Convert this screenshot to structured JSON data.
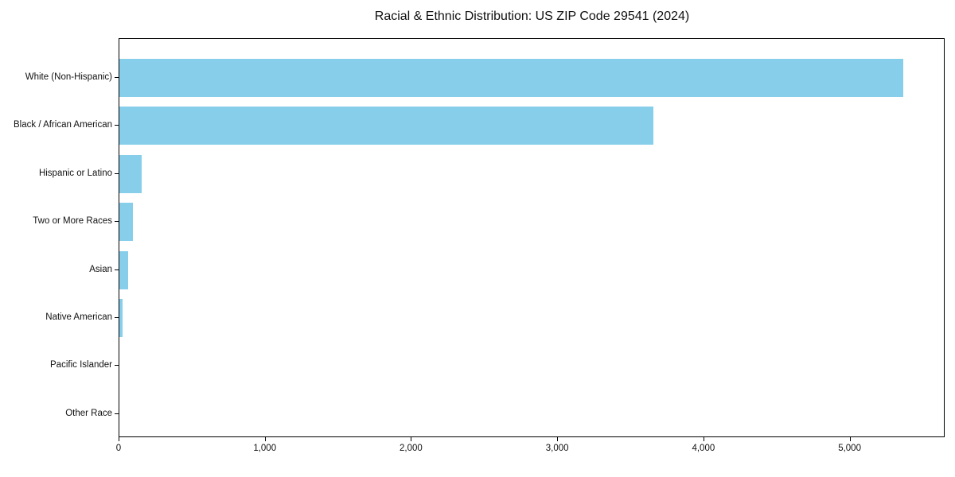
{
  "chart_data": {
    "type": "bar",
    "orientation": "horizontal",
    "title": "Racial & Ethnic Distribution: US ZIP Code 29541 (2024)",
    "categories": [
      "White (Non-Hispanic)",
      "Black / African American",
      "Hispanic or Latino",
      "Two or More Races",
      "Asian",
      "Native American",
      "Pacific Islander",
      "Other Race"
    ],
    "values": [
      5360,
      3655,
      155,
      90,
      60,
      20,
      0,
      0
    ],
    "xlabel": "",
    "ylabel": "",
    "xlim": [
      0,
      5650
    ],
    "x_ticks": [
      0,
      1000,
      2000,
      3000,
      4000,
      5000
    ],
    "x_tick_labels": [
      "0",
      "1,000",
      "2,000",
      "3,000",
      "4,000",
      "5,000"
    ],
    "bar_color": "#87CEEB",
    "grid": false,
    "legend": null,
    "background_color": "#ffffff",
    "spine_color": "#000000"
  }
}
